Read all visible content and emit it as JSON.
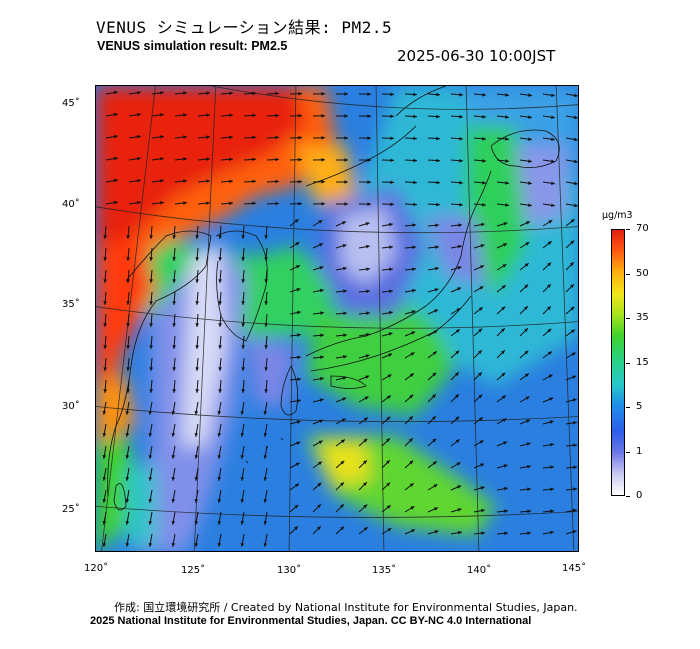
{
  "header": {
    "title_ja": "VENUS シミュレーション結果: PM2.5",
    "title_en": "VENUS simulation result: PM2.5",
    "timestamp": "2025-06-30 10:00JST"
  },
  "map": {
    "region": "East Asia / Japan",
    "variable": "PM2.5",
    "longitude_labels": [
      "120˚",
      "125˚",
      "130˚",
      "135˚",
      "140˚",
      "145˚"
    ],
    "latitude_labels": [
      "45˚",
      "40˚",
      "35˚",
      "30˚",
      "25˚"
    ],
    "features": [
      "wind vectors",
      "coastlines",
      "graticule"
    ]
  },
  "colorbar": {
    "unit": "μg/m3",
    "levels": [
      "70",
      "50",
      "35",
      "15",
      "5",
      "1",
      "0"
    ],
    "colors": [
      "#e02010",
      "#ff5a10",
      "#f2e41a",
      "#3fd22c",
      "#27c9c9",
      "#2a5ee8",
      "#ffffff"
    ]
  },
  "footer": {
    "credit_line1": "作成: 国立環境研究所 / Created by National Institute for Environmental Studies, Japan.",
    "credit_line2": "2025 National Institute for Environmental Studies, Japan. CC BY-NC 4.0 International"
  }
}
